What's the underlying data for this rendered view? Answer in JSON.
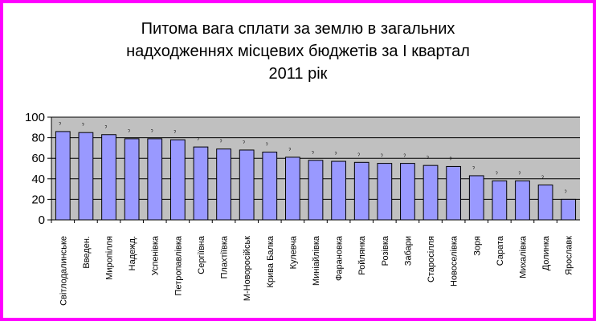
{
  "chart_data": {
    "type": "bar",
    "title_lines": [
      "Питома вага сплати за землю в загальних",
      "надходженнях місцевих бюджетів за І квартал",
      "2011 рік"
    ],
    "categories": [
      "Світлодалинське",
      "Введен.",
      "Миропілля",
      "Надежд.",
      "Успенівка",
      "Петропавлівка",
      "Сергіївна",
      "Плахтіївка",
      "М-Новоросійськ",
      "Крива Балка",
      "Кулевча",
      "Миніайлівка",
      "Фарановка",
      "Ройлянка",
      "Розівка",
      "Забари",
      "Старосілля",
      "Новоселівка",
      "Зоря",
      "Сарата",
      "Михалівка",
      "Долинка",
      "Ярославк"
    ],
    "values": [
      86,
      85,
      83,
      79,
      79,
      78,
      71,
      69,
      68,
      66,
      61,
      58,
      57,
      56,
      55,
      55,
      53,
      52,
      43,
      38,
      38,
      34,
      20
    ],
    "ylim": [
      0,
      100
    ],
    "yticks": [
      0,
      20,
      40,
      60,
      80,
      100
    ],
    "grid": true,
    "colors": {
      "bar_fill": "#9999ff",
      "bar_stroke": "#000000",
      "plot_bg": "#c0c0c0",
      "gridline": "#000000",
      "frame": "#ff00ff"
    }
  }
}
